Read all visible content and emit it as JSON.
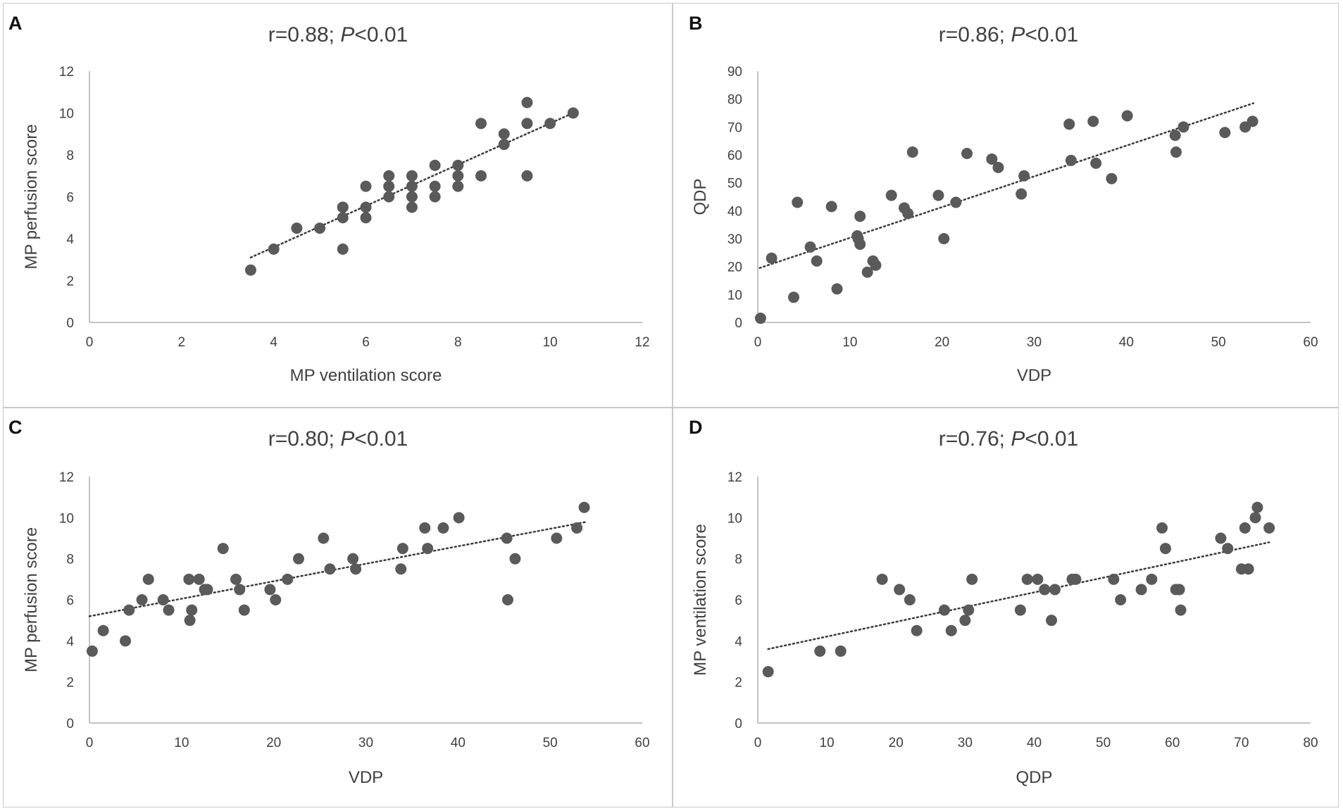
{
  "colors": {
    "point": "#5a5a5a",
    "axis": "#b0b0b0",
    "trend": "#3a3a3a",
    "text": "#404040",
    "border": "#c9c9c9"
  },
  "chart_data": [
    {
      "panel": "A",
      "type": "scatter",
      "title_prefix": "r=0.88; ",
      "title_p": "P",
      "title_suffix": "<0.01",
      "xlabel": "MP ventilation score",
      "ylabel": "MP perfusion score",
      "xlim": [
        0,
        12
      ],
      "xticks": [
        0,
        2,
        4,
        6,
        8,
        10,
        12
      ],
      "ylim": [
        0,
        12
      ],
      "yticks": [
        0,
        2,
        4,
        6,
        8,
        10,
        12
      ],
      "trendline": {
        "x": [
          3.5,
          10.5
        ],
        "y": [
          3.1,
          10.0
        ]
      },
      "x": [
        3.5,
        4,
        4.5,
        5,
        5.5,
        5.5,
        5.5,
        5.5,
        6,
        6,
        6,
        6.5,
        6.5,
        6.5,
        7,
        7,
        7,
        7,
        7.5,
        7.5,
        7.5,
        8,
        8,
        8,
        8.5,
        8.5,
        9,
        9,
        9.5,
        9.5,
        9.5,
        10,
        10.5
      ],
      "y": [
        2.5,
        3.5,
        4.5,
        4.5,
        3.5,
        5,
        5.5,
        5.5,
        5,
        5.5,
        6.5,
        6,
        6.5,
        7,
        5.5,
        6,
        6.5,
        7,
        6,
        6.5,
        7.5,
        6.5,
        7,
        7.5,
        7,
        9.5,
        8.5,
        9,
        7,
        9.5,
        10.5,
        9.5,
        10
      ]
    },
    {
      "panel": "B",
      "type": "scatter",
      "title_prefix": "r=0.86; ",
      "title_p": "P",
      "title_suffix": "<0.01",
      "xlabel": "VDP",
      "ylabel": "QDP",
      "xlim": [
        0,
        60
      ],
      "xticks": [
        0,
        10,
        20,
        30,
        40,
        50,
        60
      ],
      "ylim": [
        0,
        90
      ],
      "yticks": [
        0,
        10,
        20,
        30,
        40,
        50,
        60,
        70,
        80,
        90
      ],
      "trendline": {
        "x": [
          0.2,
          53.8
        ],
        "y": [
          19.5,
          78.5
        ]
      },
      "x": [
        0.3,
        1.5,
        3.9,
        4.3,
        5.7,
        6.4,
        8.0,
        8.6,
        10.8,
        10.9,
        11.1,
        11.1,
        11.9,
        12.5,
        12.8,
        14.5,
        15.9,
        16.3,
        16.8,
        19.6,
        20.2,
        21.5,
        22.7,
        25.4,
        26.1,
        28.6,
        28.9,
        33.8,
        34.0,
        36.4,
        36.7,
        38.4,
        40.1,
        45.3,
        45.4,
        46.2,
        50.7,
        52.9,
        53.7
      ],
      "y": [
        1.5,
        23,
        9,
        43,
        27,
        22,
        41.5,
        12,
        31,
        30,
        28,
        38,
        18,
        22,
        20.5,
        45.5,
        41,
        39,
        61,
        45.5,
        30,
        43,
        60.5,
        58.5,
        55.5,
        46,
        52.5,
        71,
        58,
        72,
        57,
        51.5,
        74,
        67,
        61,
        70,
        68,
        70,
        72
      ]
    },
    {
      "panel": "C",
      "type": "scatter",
      "title_prefix": "r=0.80; ",
      "title_p": "P",
      "title_suffix": "<0.01",
      "xlabel": "VDP",
      "ylabel": "MP perfusion score",
      "xlim": [
        0,
        60
      ],
      "xticks": [
        0,
        10,
        20,
        30,
        40,
        50,
        60
      ],
      "ylim": [
        0,
        12
      ],
      "yticks": [
        0,
        2,
        4,
        6,
        8,
        10,
        12
      ],
      "trendline": {
        "x": [
          0,
          54
        ],
        "y": [
          5.2,
          9.8
        ]
      },
      "x": [
        0.3,
        1.5,
        3.9,
        4.3,
        5.7,
        6.4,
        8.0,
        8.6,
        10.8,
        10.9,
        11.1,
        11.9,
        12.5,
        12.8,
        14.5,
        15.9,
        16.3,
        16.8,
        19.6,
        20.2,
        21.5,
        22.7,
        25.4,
        26.1,
        28.6,
        28.9,
        33.8,
        34.0,
        36.4,
        36.7,
        38.4,
        40.1,
        45.3,
        45.4,
        46.2,
        50.7,
        52.9,
        53.7
      ],
      "y": [
        3.5,
        4.5,
        4,
        5.5,
        6,
        7,
        6,
        5.5,
        7,
        5,
        5.5,
        7,
        6.5,
        6.5,
        8.5,
        7,
        6.5,
        5.5,
        6.5,
        6,
        7,
        8,
        9,
        7.5,
        8,
        7.5,
        7.5,
        8.5,
        9.5,
        8.5,
        9.5,
        10,
        9,
        6,
        8,
        9,
        9.5,
        10.5
      ]
    },
    {
      "panel": "D",
      "type": "scatter",
      "title_prefix": "r=0.76; ",
      "title_p": "P",
      "title_suffix": "<0.01",
      "xlabel": "QDP",
      "ylabel": "MP ventilation score",
      "xlim": [
        0,
        80
      ],
      "xticks": [
        0,
        10,
        20,
        30,
        40,
        50,
        60,
        70,
        80
      ],
      "ylim": [
        0,
        12
      ],
      "yticks": [
        0,
        2,
        4,
        6,
        8,
        10,
        12
      ],
      "trendline": {
        "x": [
          1.5,
          74
        ],
        "y": [
          3.6,
          8.8
        ]
      },
      "x": [
        1.5,
        9,
        12,
        18,
        20.5,
        22,
        23,
        27,
        28,
        30,
        30.5,
        31,
        38,
        39,
        40.5,
        41.5,
        42.5,
        43,
        45.5,
        46,
        51.5,
        52.5,
        55.5,
        57,
        58.5,
        59,
        60.5,
        61,
        61.2,
        67,
        68,
        70,
        70.5,
        71,
        72,
        72.3,
        74
      ],
      "y": [
        2.5,
        3.5,
        3.5,
        7,
        6.5,
        6,
        4.5,
        5.5,
        4.5,
        5,
        5.5,
        7,
        5.5,
        7,
        7,
        6.5,
        5,
        6.5,
        7,
        7,
        7,
        6,
        6.5,
        7,
        9.5,
        8.5,
        6.5,
        6.5,
        5.5,
        9,
        8.5,
        7.5,
        9.5,
        7.5,
        10,
        10.5,
        9.5
      ]
    }
  ]
}
